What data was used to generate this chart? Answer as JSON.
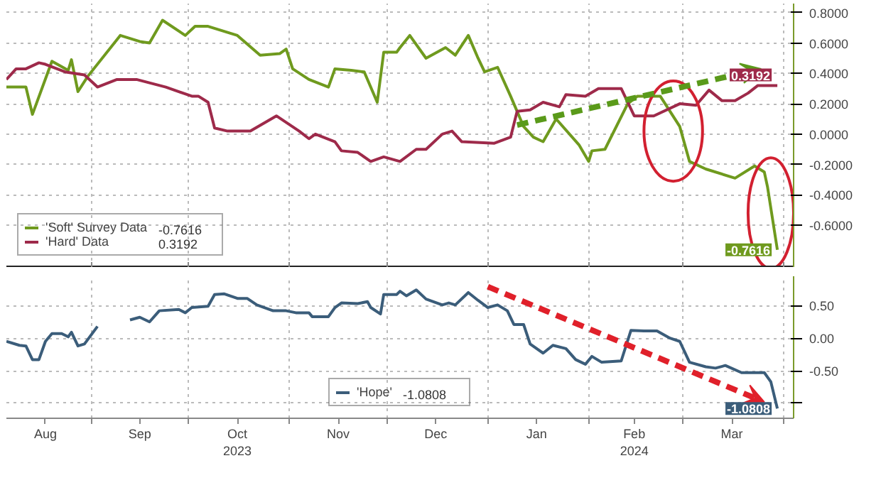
{
  "chart_data": [
    {
      "type": "line",
      "xlim": [
        "2023-08-06",
        "2024-04-04"
      ],
      "ylim": [
        -0.88,
        0.86
      ],
      "tick_labels": "y",
      "grid": true,
      "legend": "bottom left",
      "xticks": [
        {
          "value": "2023-09-01",
          "label": null
        },
        {
          "value": "2023-10-01",
          "label": null
        },
        {
          "value": "2023-11-01",
          "label": null
        },
        {
          "value": "2023-12-01",
          "label": null
        },
        {
          "value": "2024-01-01",
          "label": null
        },
        {
          "value": "2024-02-01",
          "label": null
        },
        {
          "value": "2024-03-01",
          "label": null
        },
        {
          "value": "2024-04-01",
          "label": null
        }
      ],
      "yticks": [
        {
          "value": 0.8,
          "label": "0.8000"
        },
        {
          "value": 0.6,
          "label": "0.6000"
        },
        {
          "value": 0.4,
          "label": "0.4000"
        },
        {
          "value": 0.2,
          "label": "0.2000"
        },
        {
          "value": 0,
          "label": "0.0000"
        },
        {
          "value": -0.2,
          "label": "-0.2000"
        },
        {
          "value": -0.4,
          "label": "-0.4000"
        },
        {
          "value": -0.6,
          "label": "-0.6000"
        }
      ],
      "series": [
        {
          "name": "'Soft' Survey Data",
          "color": "#6f9a1e",
          "x": [
            "2023-08-06",
            "2023-08-12",
            "2023-08-14",
            "2023-08-20",
            "2023-08-25",
            "2023-08-26",
            "2023-08-28",
            "2023-08-31",
            "2023-09-10",
            "2023-09-16",
            "2023-09-19",
            "2023-09-23",
            "2023-09-30",
            "2023-10-03",
            "2023-10-07",
            "2023-10-16",
            "2023-10-23",
            "2023-10-29",
            "2023-10-31",
            "2023-11-02",
            "2023-11-07",
            "2023-11-13",
            "2023-11-15",
            "2023-11-20",
            "2023-11-24",
            "2023-11-28",
            "2023-11-30",
            "2023-12-04",
            "2023-12-05",
            "2023-12-08",
            "2023-12-13",
            "2023-12-19",
            "2023-12-22",
            "2023-12-26",
            "2023-12-29",
            "2023-12-31",
            "2024-01-04",
            "2024-01-08",
            "2024-01-12",
            "2024-01-15",
            "2024-01-18",
            "2024-01-22",
            "2024-01-29",
            "2024-02-01",
            "2024-02-02",
            "2024-02-06",
            "2024-02-13",
            "2024-02-16",
            "2024-02-23",
            "2024-02-29",
            "2024-03-03",
            "2024-03-08",
            "2024-03-17",
            "2024-03-23",
            "2024-03-26",
            "2024-03-27",
            "2024-03-30"
          ],
          "values": [
            0.31,
            0.31,
            0.13,
            0.48,
            0.42,
            0.49,
            0.28,
            0.38,
            0.65,
            0.61,
            0.6,
            0.75,
            0.65,
            0.71,
            0.71,
            0.65,
            0.52,
            0.53,
            0.56,
            0.43,
            0.36,
            0.31,
            0.43,
            0.42,
            0.41,
            0.21,
            0.54,
            0.54,
            0.57,
            0.65,
            0.5,
            0.57,
            0.52,
            0.65,
            0.5,
            0.41,
            0.44,
            0.25,
            0.05,
            -0.02,
            -0.05,
            0.1,
            -0.07,
            -0.18,
            -0.11,
            -0.1,
            0.2,
            0.25,
            0.25,
            0.05,
            -0.18,
            -0.23,
            -0.29,
            -0.21,
            -0.25,
            -0.35,
            -0.7616
          ],
          "value_labels": [
            null,
            null,
            null,
            null,
            null,
            null,
            null,
            null,
            null,
            null,
            null,
            null,
            null,
            null,
            null,
            null,
            null,
            null,
            null,
            null,
            null,
            null,
            null,
            null,
            null,
            null,
            null,
            null,
            null,
            null,
            null,
            null,
            null,
            null,
            null,
            null,
            null,
            null,
            null,
            null,
            null,
            null,
            null,
            null,
            null,
            null,
            null,
            null,
            null,
            null,
            null,
            null,
            null,
            null,
            null,
            null,
            "-0.7616"
          ]
        },
        {
          "name": "'Hard' Data",
          "color": "#9e2a4a",
          "x": [
            "2023-08-06",
            "2023-08-09",
            "2023-08-12",
            "2023-08-16",
            "2023-08-18",
            "2023-08-24",
            "2023-08-30",
            "2023-09-03",
            "2023-09-09",
            "2023-09-15",
            "2023-09-24",
            "2023-10-02",
            "2023-10-04",
            "2023-10-07",
            "2023-10-09",
            "2023-10-13",
            "2023-10-20",
            "2023-10-28",
            "2023-11-04",
            "2023-11-07",
            "2023-11-09",
            "2023-11-15",
            "2023-11-17",
            "2023-11-22",
            "2023-11-26",
            "2023-11-30",
            "2023-12-05",
            "2023-12-10",
            "2023-12-13",
            "2023-12-18",
            "2023-12-21",
            "2023-12-24",
            "2024-01-03",
            "2024-01-08",
            "2024-01-10",
            "2024-01-14",
            "2024-01-18",
            "2024-01-23",
            "2024-01-25",
            "2024-01-31",
            "2024-02-04",
            "2024-02-11",
            "2024-02-15",
            "2024-02-21",
            "2024-02-29",
            "2024-03-05",
            "2024-03-09",
            "2024-03-13",
            "2024-03-17",
            "2024-03-21",
            "2024-03-24",
            "2024-03-30"
          ],
          "values": [
            0.36,
            0.43,
            0.43,
            0.47,
            0.46,
            0.41,
            0.39,
            0.31,
            0.36,
            0.36,
            0.31,
            0.25,
            0.25,
            0.21,
            0.04,
            0.02,
            0.02,
            0.12,
            0.02,
            -0.03,
            0.0,
            -0.05,
            -0.11,
            -0.12,
            -0.18,
            -0.15,
            -0.18,
            -0.1,
            -0.1,
            0.0,
            0.02,
            -0.05,
            -0.06,
            -0.02,
            0.15,
            0.16,
            0.21,
            0.18,
            0.26,
            0.25,
            0.3,
            0.3,
            0.12,
            0.12,
            0.2,
            0.19,
            0.29,
            0.22,
            0.22,
            0.27,
            0.32,
            0.3192
          ],
          "value_labels": [
            null,
            null,
            null,
            null,
            null,
            null,
            null,
            null,
            null,
            null,
            null,
            null,
            null,
            null,
            null,
            null,
            null,
            null,
            null,
            null,
            null,
            null,
            null,
            null,
            null,
            null,
            null,
            null,
            null,
            null,
            null,
            null,
            null,
            null,
            null,
            null,
            null,
            null,
            null,
            null,
            null,
            null,
            null,
            null,
            null,
            null,
            null,
            null,
            null,
            null,
            null,
            "0.3192"
          ]
        }
      ]
    },
    {
      "type": "line",
      "xlim": [
        "2023-08-06",
        "2024-04-04"
      ],
      "ylim": [
        -1.23,
        0.95
      ],
      "grid": true,
      "legend": "bottom",
      "xticks": [
        {
          "value": "2023-08-18",
          "label": "Aug"
        },
        {
          "value": "2023-09-01",
          "label": null
        },
        {
          "value": "2023-09-16",
          "label": "Sep"
        },
        {
          "value": "2023-10-01",
          "label": null
        },
        {
          "value": "2023-10-16",
          "label": "Oct\n2023"
        },
        {
          "value": "2023-11-01",
          "label": null
        },
        {
          "value": "2023-11-16",
          "label": "Nov"
        },
        {
          "value": "2023-12-01",
          "label": null
        },
        {
          "value": "2023-12-16",
          "label": "Dec"
        },
        {
          "value": "2024-01-01",
          "label": null
        },
        {
          "value": "2024-01-16",
          "label": "Jan"
        },
        {
          "value": "2024-02-01",
          "label": null
        },
        {
          "value": "2024-02-15",
          "label": "Feb\n2024"
        },
        {
          "value": "2024-03-01",
          "label": null
        },
        {
          "value": "2024-03-16",
          "label": "Mar"
        },
        {
          "value": "2024-04-01",
          "label": null
        }
      ],
      "yticks": [
        {
          "value": 0.5,
          "label": "0.50"
        },
        {
          "value": 0,
          "label": "0.00"
        },
        {
          "value": -0.5,
          "label": "-0.50"
        },
        {
          "value": -1,
          "label": null
        }
      ],
      "series": [
        {
          "name": "'Hope'",
          "color": "#3b5d7a",
          "x": [
            "2023-08-06",
            "2023-08-10",
            "2023-08-12",
            "2023-08-14",
            "2023-08-16",
            "2023-08-18",
            "2023-08-20",
            "2023-08-23",
            "2023-08-25",
            "2023-08-26",
            "2023-08-28",
            "2023-08-30",
            "2023-09-03",
            "2023-09-08",
            "2023-09-13",
            "2023-09-16",
            "2023-09-19",
            "2023-09-22",
            "2023-09-28",
            "2023-09-30",
            "2023-10-02",
            "2023-10-07",
            "2023-10-09",
            "2023-10-12",
            "2023-10-16",
            "2023-10-19",
            "2023-10-22",
            "2023-10-27",
            "2023-10-31",
            "2023-11-03",
            "2023-11-07",
            "2023-11-08",
            "2023-11-13",
            "2023-11-15",
            "2023-11-17",
            "2023-11-22",
            "2023-11-25",
            "2023-11-26",
            "2023-11-29",
            "2023-11-30",
            "2023-12-04",
            "2023-12-05",
            "2023-12-07",
            "2023-12-10",
            "2023-12-13",
            "2023-12-18",
            "2023-12-20",
            "2023-12-22",
            "2023-12-26",
            "2023-12-29",
            "2024-01-01",
            "2024-01-04",
            "2024-01-07",
            "2024-01-09",
            "2024-01-12",
            "2024-01-14",
            "2024-01-18",
            "2024-01-21",
            "2024-01-25",
            "2024-01-28",
            "2024-01-31",
            "2024-02-02",
            "2024-02-05",
            "2024-02-11",
            "2024-02-14",
            "2024-02-18",
            "2024-02-22",
            "2024-02-26",
            "2024-02-29",
            "2024-03-03",
            "2024-03-08",
            "2024-03-11",
            "2024-03-14",
            "2024-03-19",
            "2024-03-26",
            "2024-03-28",
            "2024-03-30"
          ],
          "values": [
            -0.05,
            -0.11,
            -0.12,
            -0.33,
            -0.33,
            -0.05,
            0.07,
            0.07,
            0.02,
            0.09,
            -0.12,
            -0.09,
            0.18,
            null,
            0.28,
            0.32,
            0.25,
            0.42,
            0.44,
            0.39,
            0.47,
            0.49,
            0.67,
            0.68,
            0.61,
            0.61,
            0.51,
            0.42,
            0.42,
            0.39,
            0.39,
            0.33,
            0.33,
            0.47,
            0.54,
            0.53,
            0.56,
            0.47,
            0.37,
            0.67,
            0.67,
            0.72,
            0.65,
            0.74,
            0.6,
            0.51,
            0.54,
            0.51,
            0.7,
            0.58,
            0.47,
            0.51,
            0.42,
            0.21,
            0.21,
            -0.09,
            -0.23,
            -0.11,
            -0.16,
            -0.33,
            -0.4,
            -0.28,
            -0.37,
            -0.35,
            0.12,
            0.11,
            0.11,
            0.0,
            -0.05,
            -0.37,
            -0.44,
            -0.46,
            -0.42,
            -0.53,
            -0.53,
            -0.67,
            -1.0808
          ],
          "value_labels": [
            null,
            null,
            null,
            null,
            null,
            null,
            null,
            null,
            null,
            null,
            null,
            null,
            null,
            null,
            null,
            null,
            null,
            null,
            null,
            null,
            null,
            null,
            null,
            null,
            null,
            null,
            null,
            null,
            null,
            null,
            null,
            null,
            null,
            null,
            null,
            null,
            null,
            null,
            null,
            null,
            null,
            null,
            null,
            null,
            null,
            null,
            null,
            null,
            null,
            null,
            null,
            null,
            null,
            null,
            null,
            null,
            null,
            null,
            null,
            null,
            null,
            null,
            null,
            null,
            null,
            null,
            null,
            null,
            null,
            null,
            null,
            null,
            null,
            null,
            null,
            null,
            "-1.0808"
          ]
        }
      ]
    }
  ]
}
